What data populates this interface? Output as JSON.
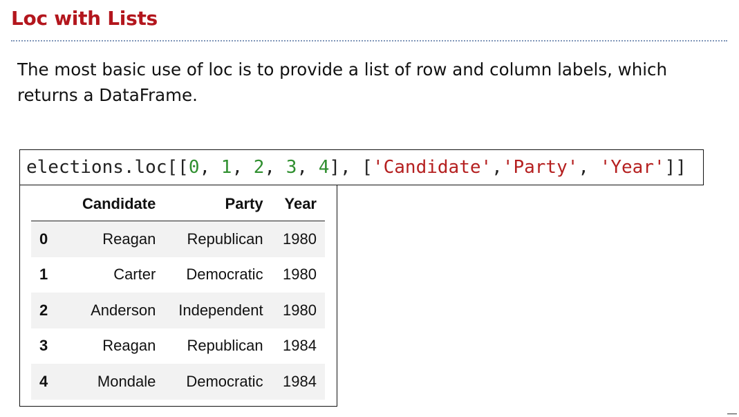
{
  "slide": {
    "title": "Loc with Lists",
    "body_line1": "The most basic use of loc is to provide a list of row and column labels, which",
    "body_line2": "returns a DataFrame."
  },
  "code": {
    "object": "elections.loc",
    "open_brackets": "[[",
    "row_labels": [
      "0",
      "1",
      "2",
      "3",
      "4"
    ],
    "mid": "], [",
    "column_labels": [
      "'Candidate'",
      "'Party'",
      "'Year'"
    ],
    "close_brackets": "]]"
  },
  "dataframe": {
    "columns": [
      "Candidate",
      "Party",
      "Year"
    ],
    "rows": [
      {
        "index": "0",
        "candidate": "Reagan",
        "party": "Republican",
        "year": "1980"
      },
      {
        "index": "1",
        "candidate": "Carter",
        "party": "Democratic",
        "year": "1980"
      },
      {
        "index": "2",
        "candidate": "Anderson",
        "party": "Independent",
        "year": "1980"
      },
      {
        "index": "3",
        "candidate": "Reagan",
        "party": "Republican",
        "year": "1984"
      },
      {
        "index": "4",
        "candidate": "Mondale",
        "party": "Democratic",
        "year": "1984"
      }
    ]
  },
  "colors": {
    "title": "#b3161d",
    "rule": "#7f96b8",
    "code_number": "#2f8f2f",
    "code_string": "#b52020",
    "row_stripe": "#f2f2f2"
  }
}
